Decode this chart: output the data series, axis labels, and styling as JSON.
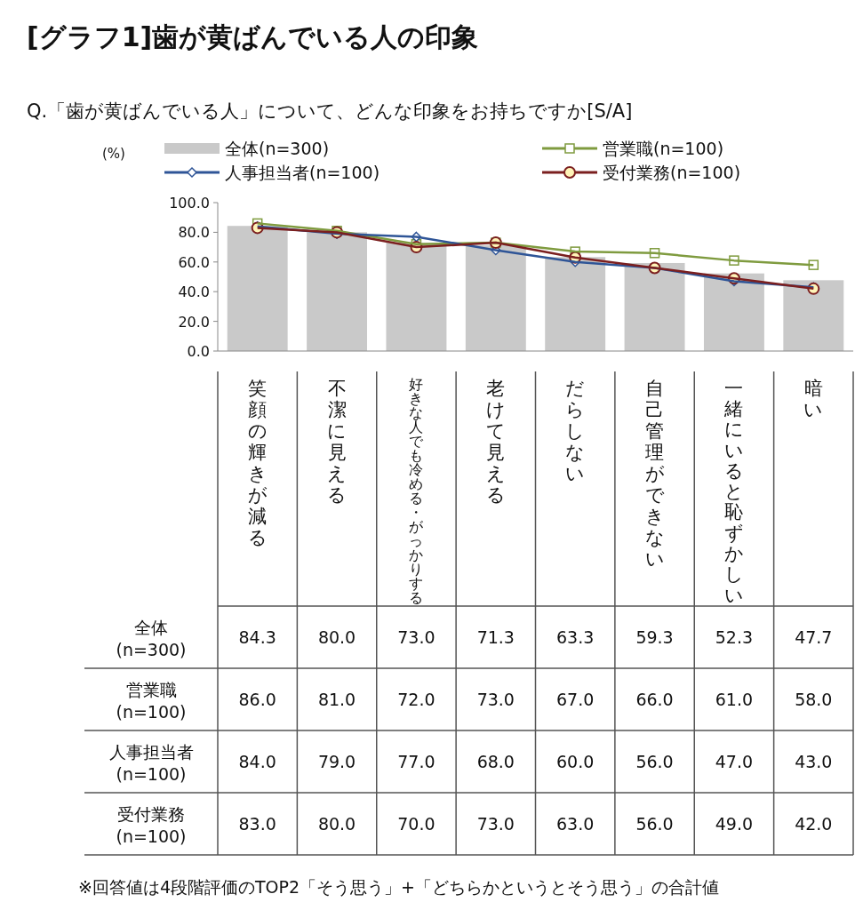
{
  "chart_data": {
    "type": "bar",
    "title": "[グラフ1]歯が黄ばんでいる人の印象",
    "subtitle": "Q.「歯が黄ばんでいる人」について、どんな印象をお持ちですか[S/A]",
    "ylabel": "(%)",
    "categories": [
      "笑顔の輝きが減る",
      "不潔に見える",
      "好きな人でも冷める・がっかりする",
      "老けて見える",
      "だらしない",
      "自己管理ができない",
      "一緒にいると恥ずかしい",
      "暗い"
    ],
    "series": [
      {
        "name": "全体(n=300)",
        "type": "bar",
        "color": "#c9c9c9",
        "values": [
          84.3,
          80.0,
          73.0,
          71.3,
          63.3,
          59.3,
          52.3,
          47.7
        ],
        "value_labels": [
          "84.3",
          "80.0",
          "73.0",
          "71.3",
          "63.3",
          "59.3",
          "52.3",
          "47.7"
        ]
      },
      {
        "name": "営業職(n=100)",
        "type": "line",
        "color": "#7f9b3f",
        "marker": "square",
        "values": [
          86.0,
          81.0,
          72.0,
          73.0,
          67.0,
          66.0,
          61.0,
          58.0
        ],
        "value_labels": [
          "86.0",
          "81.0",
          "72.0",
          "73.0",
          "67.0",
          "66.0",
          "61.0",
          "58.0"
        ]
      },
      {
        "name": "人事担当者(n=100)",
        "type": "line",
        "color": "#2f5597",
        "marker": "diamond",
        "values": [
          84.0,
          79.0,
          77.0,
          68.0,
          60.0,
          56.0,
          47.0,
          43.0
        ],
        "value_labels": [
          "84.0",
          "79.0",
          "77.0",
          "68.0",
          "60.0",
          "56.0",
          "47.0",
          "43.0"
        ]
      },
      {
        "name": "受付業務(n=100)",
        "type": "line",
        "color": "#7b1f1f",
        "marker": "circle",
        "values": [
          83.0,
          80.0,
          70.0,
          73.0,
          63.0,
          56.0,
          49.0,
          42.0
        ],
        "value_labels": [
          "83.0",
          "80.0",
          "70.0",
          "73.0",
          "63.0",
          "56.0",
          "49.0",
          "42.0"
        ]
      }
    ],
    "ylim": [
      0,
      100
    ],
    "yticks": [
      {
        "value": 0,
        "label": "0.0"
      },
      {
        "value": 20,
        "label": "20.0"
      },
      {
        "value": 40,
        "label": "40.0"
      },
      {
        "value": 60,
        "label": "60.0"
      },
      {
        "value": 80,
        "label": "80.0"
      },
      {
        "value": 100,
        "label": "100.0"
      }
    ],
    "legend": "top",
    "annotations": [
      "※回答値は4段階評価のTOP2「そう思う」+「どちらかというとそう思う」の合計値"
    ]
  }
}
